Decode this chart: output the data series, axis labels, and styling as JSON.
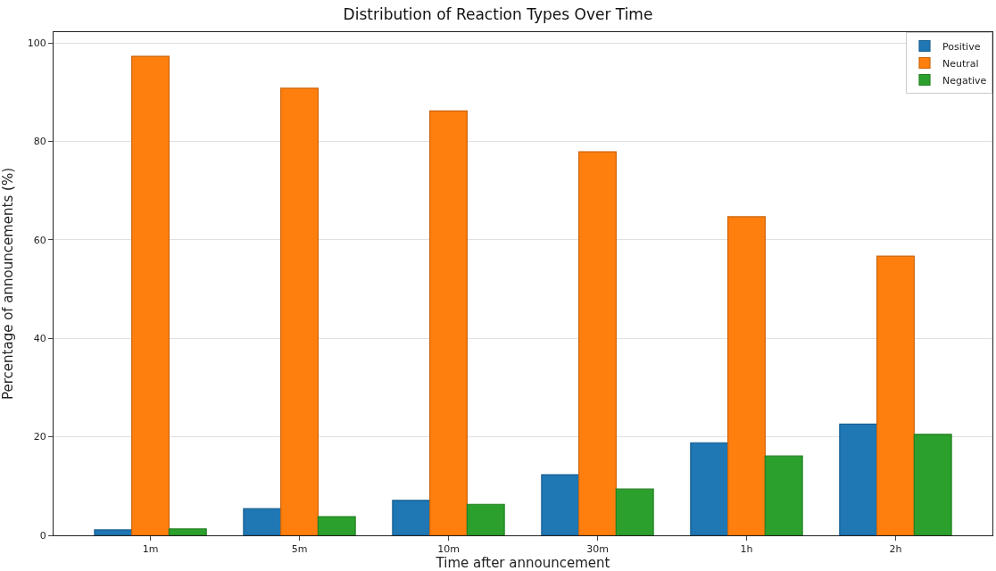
{
  "chart_data": {
    "type": "bar",
    "title": "Distribution of Reaction Types Over Time",
    "xlabel": "Time after announcement",
    "ylabel": "Percentage of announcements (%)",
    "categories": [
      "1m",
      "5m",
      "10m",
      "30m",
      "1h",
      "2h"
    ],
    "series": [
      {
        "name": "Positive",
        "color": "#1f77b4",
        "values": [
          1.1,
          5.4,
          7.1,
          12.3,
          18.8,
          22.6
        ]
      },
      {
        "name": "Neutral",
        "color": "#ff7f0e",
        "values": [
          97.3,
          90.8,
          86.2,
          77.9,
          64.7,
          56.7
        ]
      },
      {
        "name": "Negative",
        "color": "#2ca02c",
        "values": [
          1.3,
          3.8,
          6.3,
          9.4,
          16.1,
          20.5
        ]
      }
    ],
    "ylim": [
      0,
      102.2
    ],
    "yticks": [
      0,
      20,
      40,
      60,
      80,
      100
    ],
    "grid": "y",
    "legend": "top right"
  }
}
